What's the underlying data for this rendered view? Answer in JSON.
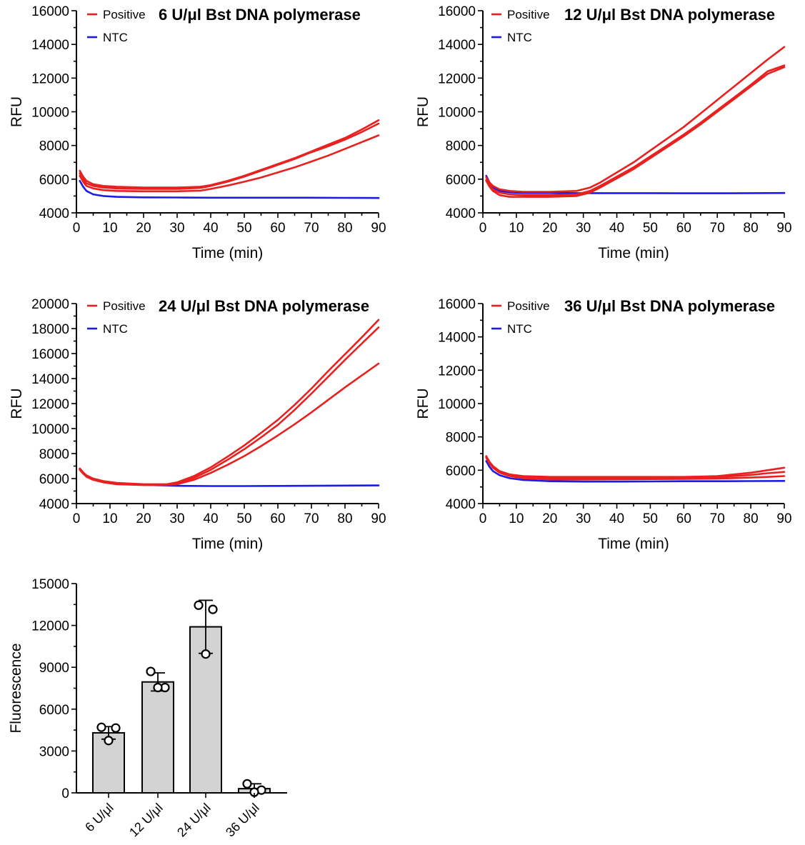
{
  "colors": {
    "positive": "#e8201f",
    "ntc": "#1c1ce6",
    "bar_fill": "#d3d3d3",
    "axis": "#000000"
  },
  "legend": {
    "positive": "Positive",
    "ntc": "NTC"
  },
  "chart_data": [
    {
      "type": "line",
      "title": "6 U/μl Bst DNA polymerase",
      "xlabel": "Time (min)",
      "ylabel": "RFU",
      "xlim": [
        0,
        90
      ],
      "ylim": [
        4000,
        16000
      ],
      "xticks": [
        "0",
        "10",
        "20",
        "30",
        "40",
        "50",
        "60",
        "70",
        "80",
        "90"
      ],
      "yticks": [
        "4000",
        "6000",
        "8000",
        "10000",
        "12000",
        "14000",
        "16000"
      ],
      "grid": false,
      "legend_position": "top-left",
      "series": [
        {
          "name": "Positive",
          "group": "positive",
          "x": [
            1,
            2,
            3,
            5,
            8,
            12,
            20,
            30,
            37,
            40,
            45,
            50,
            55,
            60,
            65,
            70,
            75,
            80,
            85,
            90
          ],
          "y": [
            6500,
            6150,
            5900,
            5700,
            5600,
            5550,
            5500,
            5500,
            5550,
            5650,
            5900,
            6200,
            6550,
            6900,
            7250,
            7650,
            8050,
            8450,
            8950,
            9500
          ]
        },
        {
          "name": "Positive",
          "group": "positive",
          "x": [
            1,
            2,
            3,
            5,
            8,
            12,
            20,
            30,
            37,
            40,
            45,
            50,
            55,
            60,
            65,
            70,
            75,
            80,
            85,
            90
          ],
          "y": [
            6350,
            6000,
            5750,
            5600,
            5500,
            5450,
            5420,
            5420,
            5480,
            5600,
            5850,
            6150,
            6500,
            6850,
            7200,
            7600,
            7950,
            8350,
            8800,
            9300
          ]
        },
        {
          "name": "Positive",
          "group": "positive",
          "x": [
            1,
            2,
            3,
            5,
            8,
            12,
            20,
            30,
            37,
            40,
            45,
            50,
            55,
            60,
            65,
            70,
            75,
            80,
            85,
            90
          ],
          "y": [
            6200,
            5850,
            5600,
            5450,
            5350,
            5300,
            5280,
            5280,
            5320,
            5420,
            5620,
            5850,
            6100,
            6400,
            6700,
            7050,
            7400,
            7800,
            8200,
            8600
          ]
        },
        {
          "name": "NTC",
          "group": "ntc",
          "x": [
            1,
            2,
            3,
            5,
            8,
            12,
            20,
            30,
            40,
            50,
            60,
            70,
            80,
            90
          ],
          "y": [
            5900,
            5550,
            5300,
            5100,
            5000,
            4950,
            4920,
            4910,
            4900,
            4900,
            4900,
            4900,
            4890,
            4880
          ]
        }
      ]
    },
    {
      "type": "line",
      "title": "12 U/μl Bst DNA polymerase",
      "xlabel": "Time (min)",
      "ylabel": "RFU",
      "xlim": [
        0,
        90
      ],
      "ylim": [
        4000,
        16000
      ],
      "xticks": [
        "0",
        "10",
        "20",
        "30",
        "40",
        "50",
        "60",
        "70",
        "80",
        "90"
      ],
      "yticks": [
        "4000",
        "6000",
        "8000",
        "10000",
        "12000",
        "14000",
        "16000"
      ],
      "grid": false,
      "legend_position": "top-left",
      "series": [
        {
          "name": "Positive",
          "group": "positive",
          "x": [
            1,
            2,
            3,
            5,
            8,
            12,
            20,
            28,
            32,
            35,
            40,
            45,
            50,
            55,
            60,
            65,
            70,
            75,
            80,
            85,
            90
          ],
          "y": [
            6100,
            5800,
            5600,
            5400,
            5300,
            5250,
            5250,
            5300,
            5500,
            5800,
            6400,
            7000,
            7700,
            8400,
            9100,
            9900,
            10700,
            11500,
            12300,
            13100,
            13850
          ]
        },
        {
          "name": "Positive",
          "group": "positive",
          "x": [
            1,
            2,
            3,
            5,
            8,
            12,
            20,
            28,
            32,
            35,
            40,
            45,
            50,
            55,
            60,
            65,
            70,
            75,
            80,
            85,
            90
          ],
          "y": [
            5950,
            5650,
            5400,
            5200,
            5100,
            5050,
            5050,
            5100,
            5300,
            5600,
            6150,
            6700,
            7350,
            8000,
            8650,
            9350,
            10100,
            10850,
            11600,
            12400,
            12750
          ]
        },
        {
          "name": "Positive",
          "group": "positive",
          "x": [
            1,
            2,
            3,
            5,
            8,
            12,
            20,
            28,
            32,
            35,
            40,
            45,
            50,
            55,
            60,
            65,
            70,
            75,
            80,
            85,
            90
          ],
          "y": [
            5900,
            5550,
            5300,
            5050,
            4950,
            4950,
            4950,
            5000,
            5200,
            5500,
            6050,
            6600,
            7250,
            7900,
            8550,
            9250,
            10000,
            10750,
            11500,
            12250,
            12650
          ]
        },
        {
          "name": "NTC",
          "group": "ntc",
          "x": [
            1,
            2,
            3,
            5,
            8,
            12,
            20,
            30,
            40,
            50,
            60,
            70,
            80,
            90
          ],
          "y": [
            6200,
            5800,
            5500,
            5300,
            5220,
            5180,
            5180,
            5170,
            5170,
            5170,
            5160,
            5160,
            5170,
            5180
          ]
        }
      ]
    },
    {
      "type": "line",
      "title": "24 U/μl Bst DNA polymerase",
      "xlabel": "Time (min)",
      "ylabel": "RFU",
      "xlim": [
        0,
        90
      ],
      "ylim": [
        4000,
        20000
      ],
      "xticks": [
        "0",
        "10",
        "20",
        "30",
        "40",
        "50",
        "60",
        "70",
        "80",
        "90"
      ],
      "yticks": [
        "4000",
        "6000",
        "8000",
        "10000",
        "12000",
        "14000",
        "16000",
        "18000",
        "20000"
      ],
      "grid": false,
      "legend_position": "top-left",
      "series": [
        {
          "name": "Positive",
          "group": "positive",
          "x": [
            1,
            2,
            3,
            5,
            8,
            12,
            20,
            27,
            30,
            35,
            40,
            45,
            50,
            55,
            60,
            65,
            70,
            75,
            80,
            85,
            90
          ],
          "y": [
            6800,
            6500,
            6250,
            6000,
            5800,
            5650,
            5550,
            5550,
            5700,
            6200,
            6900,
            7750,
            8650,
            9650,
            10700,
            11900,
            13200,
            14600,
            15950,
            17300,
            18700
          ]
        },
        {
          "name": "Positive",
          "group": "positive",
          "x": [
            1,
            2,
            3,
            5,
            8,
            12,
            20,
            27,
            30,
            35,
            40,
            45,
            50,
            55,
            60,
            65,
            70,
            75,
            80,
            85,
            90
          ],
          "y": [
            6750,
            6450,
            6200,
            5950,
            5750,
            5600,
            5500,
            5500,
            5600,
            6050,
            6700,
            7500,
            8350,
            9300,
            10300,
            11500,
            12800,
            14150,
            15500,
            16800,
            18100
          ]
        },
        {
          "name": "Positive",
          "group": "positive",
          "x": [
            1,
            2,
            3,
            5,
            8,
            12,
            20,
            27,
            30,
            35,
            40,
            45,
            50,
            55,
            60,
            65,
            70,
            75,
            80,
            85,
            90
          ],
          "y": [
            6700,
            6400,
            6150,
            5900,
            5700,
            5550,
            5480,
            5480,
            5550,
            5900,
            6450,
            7100,
            7800,
            8600,
            9450,
            10350,
            11300,
            12300,
            13300,
            14250,
            15200
          ]
        },
        {
          "name": "NTC",
          "group": "ntc",
          "x": [
            1,
            2,
            3,
            5,
            8,
            12,
            20,
            30,
            40,
            50,
            60,
            70,
            80,
            90
          ],
          "y": [
            6800,
            6450,
            6200,
            5950,
            5750,
            5600,
            5500,
            5420,
            5400,
            5400,
            5410,
            5420,
            5440,
            5450
          ]
        }
      ]
    },
    {
      "type": "line",
      "title": "36 U/μl Bst DNA polymerase",
      "xlabel": "Time (min)",
      "ylabel": "RFU",
      "xlim": [
        0,
        90
      ],
      "ylim": [
        4000,
        16000
      ],
      "xticks": [
        "0",
        "10",
        "20",
        "30",
        "40",
        "50",
        "60",
        "70",
        "80",
        "90"
      ],
      "yticks": [
        "4000",
        "6000",
        "8000",
        "10000",
        "12000",
        "14000",
        "16000"
      ],
      "grid": false,
      "legend_position": "top-left",
      "series": [
        {
          "name": "Positive",
          "group": "positive",
          "x": [
            1,
            2,
            3,
            5,
            8,
            12,
            20,
            30,
            40,
            50,
            60,
            65,
            70,
            75,
            80,
            85,
            90
          ],
          "y": [
            6850,
            6500,
            6250,
            5950,
            5750,
            5650,
            5600,
            5600,
            5600,
            5600,
            5600,
            5620,
            5650,
            5750,
            5850,
            6000,
            6150
          ]
        },
        {
          "name": "Positive",
          "group": "positive",
          "x": [
            1,
            2,
            3,
            5,
            8,
            12,
            20,
            30,
            40,
            50,
            60,
            65,
            70,
            75,
            80,
            85,
            90
          ],
          "y": [
            6800,
            6450,
            6200,
            5900,
            5700,
            5580,
            5520,
            5520,
            5530,
            5540,
            5550,
            5560,
            5580,
            5650,
            5720,
            5820,
            5900
          ]
        },
        {
          "name": "Positive",
          "group": "positive",
          "x": [
            1,
            2,
            3,
            5,
            8,
            12,
            20,
            30,
            40,
            50,
            60,
            65,
            70,
            75,
            80,
            85,
            90
          ],
          "y": [
            6750,
            6400,
            6150,
            5850,
            5650,
            5520,
            5450,
            5450,
            5460,
            5470,
            5480,
            5490,
            5500,
            5530,
            5560,
            5600,
            5650
          ]
        },
        {
          "name": "NTC",
          "group": "ntc",
          "x": [
            1,
            2,
            3,
            5,
            8,
            12,
            20,
            30,
            40,
            50,
            60,
            70,
            80,
            90
          ],
          "y": [
            6550,
            6200,
            5950,
            5700,
            5520,
            5420,
            5340,
            5320,
            5320,
            5330,
            5340,
            5340,
            5350,
            5360
          ]
        }
      ]
    },
    {
      "type": "bar",
      "ylabel": "Fluorescence",
      "xlabel": "",
      "ylim": [
        0,
        15000
      ],
      "yticks": [
        "0",
        "3000",
        "6000",
        "9000",
        "12000",
        "15000"
      ],
      "categories": [
        "6 U/μl",
        "12 U/μl",
        "24 U/μl",
        "36 U/μl"
      ],
      "values": [
        4300,
        7950,
        11900,
        300
      ],
      "error": [
        450,
        650,
        1900,
        350
      ],
      "points": [
        [
          4700,
          4650,
          3750
        ],
        [
          8700,
          7550,
          7550
        ],
        [
          13450,
          13150,
          9950
        ],
        [
          650,
          200,
          50
        ]
      ]
    }
  ]
}
